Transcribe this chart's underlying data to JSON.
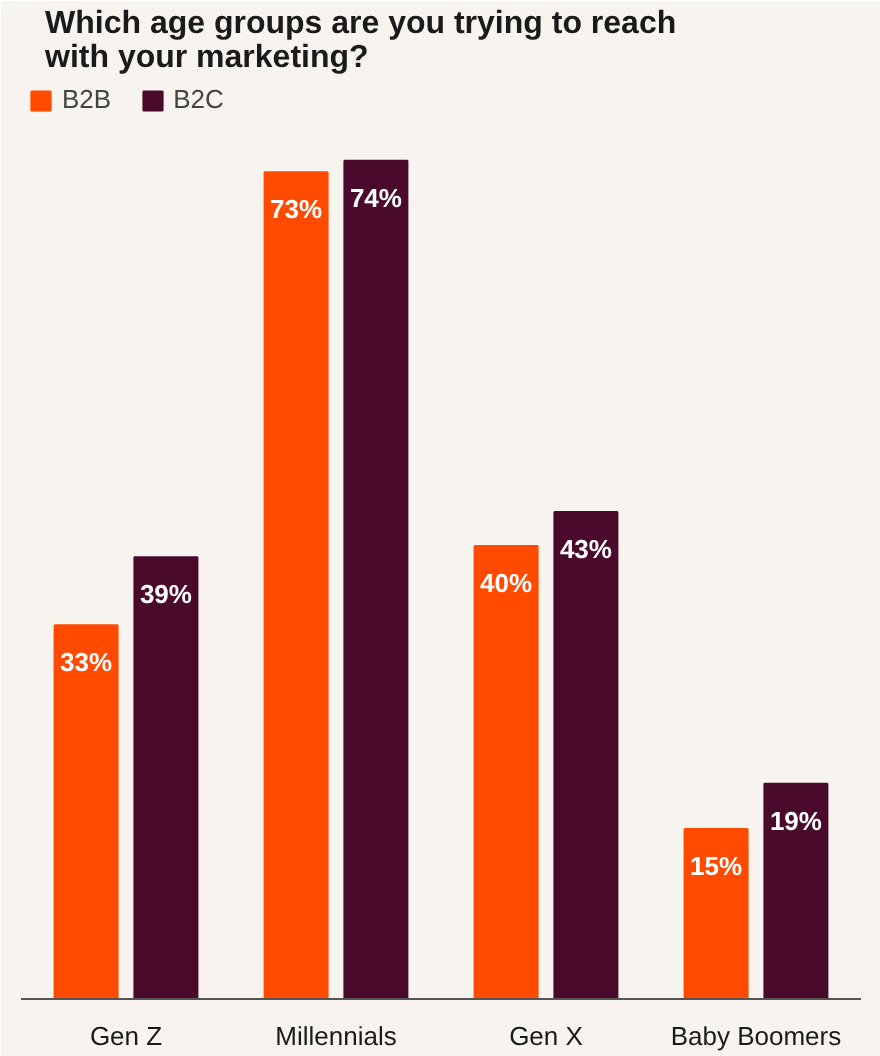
{
  "chart_data": {
    "type": "bar",
    "title": "Which age groups are you trying to reach with your marketing?",
    "categories": [
      "Gen Z",
      "Millennials",
      "Gen X",
      "Baby Boomers"
    ],
    "series": [
      {
        "name": "B2B",
        "color": "#ff4a00",
        "values": [
          33,
          73,
          40,
          15
        ],
        "value_labels": [
          "33%",
          "73%",
          "40%",
          "15%"
        ]
      },
      {
        "name": "B2C",
        "color": "#4a0a2c",
        "values": [
          39,
          74,
          43,
          19
        ],
        "value_labels": [
          "39%",
          "74%",
          "43%",
          "19%"
        ]
      }
    ],
    "grid": false,
    "legend": "top left",
    "tick_labels": "x"
  }
}
